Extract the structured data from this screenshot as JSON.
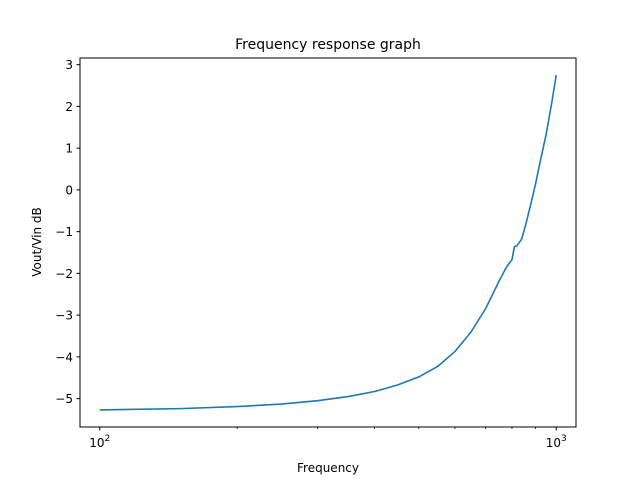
{
  "chart_data": {
    "type": "line",
    "title": "Frequency response graph",
    "xlabel": "Frequency",
    "ylabel": "Vout/Vin dB",
    "xscale": "log",
    "xlim": [
      90.5,
      1105
    ],
    "ylim": [
      -5.68,
      3.16
    ],
    "x_ticks": [
      {
        "value": 100,
        "base": "10",
        "exp": "2"
      },
      {
        "value": 1000,
        "base": "10",
        "exp": "3"
      }
    ],
    "y_ticks": [
      {
        "value": 3,
        "label": "3"
      },
      {
        "value": 2,
        "label": "2"
      },
      {
        "value": 1,
        "label": "1"
      },
      {
        "value": 0,
        "label": "0"
      },
      {
        "value": -1,
        "label": "−1"
      },
      {
        "value": -2,
        "label": "−2"
      },
      {
        "value": -3,
        "label": "−3"
      },
      {
        "value": -4,
        "label": "−4"
      },
      {
        "value": -5,
        "label": "−5"
      }
    ],
    "grid": false,
    "line_color": "#1f77b4",
    "series": [
      {
        "x": [
          100,
          150,
          200,
          250,
          300,
          350,
          400,
          450,
          500,
          550,
          600,
          650,
          700,
          750,
          780,
          800,
          810,
          820,
          840,
          860,
          880,
          900,
          920,
          950,
          980,
          1000
        ],
        "y": [
          -5.27,
          -5.24,
          -5.19,
          -5.13,
          -5.05,
          -4.95,
          -4.83,
          -4.67,
          -4.48,
          -4.23,
          -3.87,
          -3.41,
          -2.85,
          -2.18,
          -1.83,
          -1.67,
          -1.36,
          -1.34,
          -1.18,
          -0.78,
          -0.33,
          0.12,
          0.62,
          1.32,
          2.15,
          2.75
        ]
      }
    ]
  }
}
